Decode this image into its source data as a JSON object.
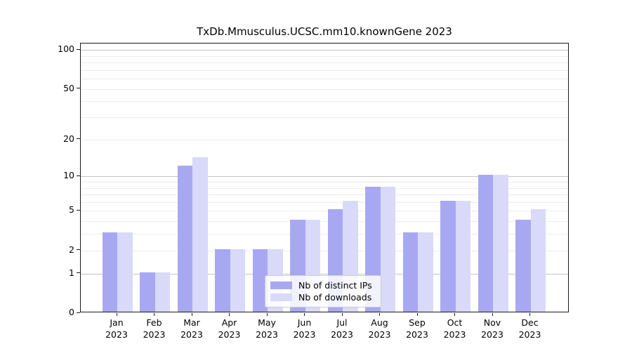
{
  "title": "TxDb.Mmusculus.UCSC.mm10.knownGene 2023",
  "chart_data": {
    "type": "bar",
    "title": "TxDb.Mmusculus.UCSC.mm10.knownGene 2023",
    "y_scale": "log1p",
    "ylim": [
      0,
      112
    ],
    "grid": "on",
    "legend_position": "lower center",
    "categories": [
      "Jan",
      "Feb",
      "Mar",
      "Apr",
      "May",
      "Jun",
      "Jul",
      "Aug",
      "Sep",
      "Oct",
      "Nov",
      "Dec"
    ],
    "year": "2023",
    "series": [
      {
        "key": "ips",
        "name": "Nb of distinct IPs",
        "color": "#a8a8f2",
        "values": [
          3,
          1,
          12,
          2,
          2,
          4,
          5,
          8,
          3,
          6,
          10,
          4
        ]
      },
      {
        "key": "downloads",
        "name": "Nb of downloads",
        "color": "#d9d9f9",
        "values": [
          3,
          1,
          14,
          2,
          2,
          4,
          6,
          8,
          3,
          6,
          10,
          5
        ]
      }
    ],
    "y_ticks": [
      100,
      50,
      20,
      10,
      5,
      2,
      1,
      0
    ],
    "major_gridlines": [
      1,
      10,
      100
    ],
    "minor_gridlines": [
      2,
      3,
      4,
      5,
      6,
      7,
      8,
      9,
      20,
      30,
      40,
      50,
      60,
      70,
      80,
      90
    ],
    "xlabel": "",
    "ylabel": ""
  }
}
